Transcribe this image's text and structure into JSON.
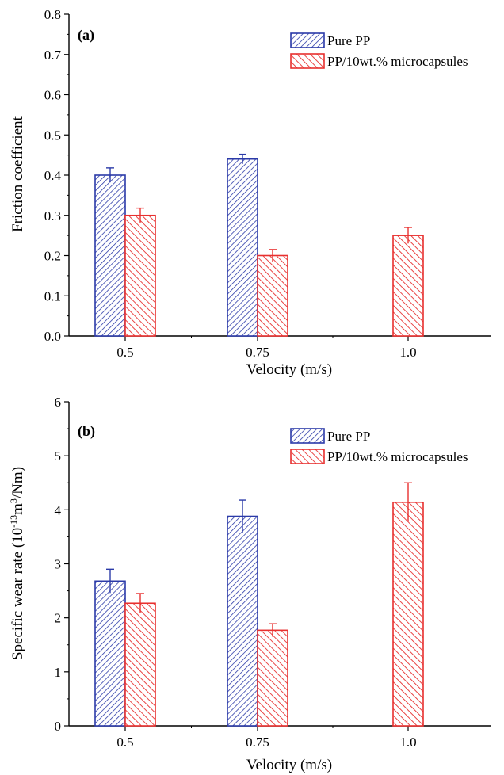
{
  "colors": {
    "pure_pp": "#2b3aa8",
    "pp_micro": "#e8302f",
    "axis": "#000000"
  },
  "chart_data": [
    {
      "type": "bar",
      "panel_label": "(a)",
      "categories": [
        "0.5",
        "0.75",
        "1.0"
      ],
      "xlabel": "Velocity (m/s)",
      "ylabel": "Friction coefficient",
      "ylabel_html": null,
      "ylim": [
        0,
        0.8
      ],
      "yticks": [
        "0.0",
        "0.1",
        "0.2",
        "0.3",
        "0.4",
        "0.5",
        "0.6",
        "0.7",
        "0.8"
      ],
      "ytick_values": [
        0,
        0.1,
        0.2,
        0.3,
        0.4,
        0.5,
        0.6,
        0.7,
        0.8
      ],
      "legend_position": "top-right",
      "grid": false,
      "series": [
        {
          "name": "Pure PP",
          "color_key": "pure_pp",
          "hatch": "dense",
          "values": [
            0.4,
            0.44,
            null
          ],
          "errors": [
            0.018,
            0.012,
            null
          ]
        },
        {
          "name": "PP/10wt.% microcapsules",
          "color_key": "pp_micro",
          "hatch": "sparse",
          "values": [
            0.3,
            0.2,
            0.25
          ],
          "errors": [
            0.018,
            0.015,
            0.02
          ]
        }
      ]
    },
    {
      "type": "bar",
      "panel_label": "(b)",
      "categories": [
        "0.5",
        "0.75",
        "1.0"
      ],
      "xlabel": "Velocity (m/s)",
      "ylabel": "Specific wear rate (10-13m3/Nm)",
      "ylabel_parts": {
        "prefix": "Specific wear rate (10",
        "exp1": "-13",
        "mid": "m",
        "exp2": "3",
        "suffix": "/Nm)"
      },
      "ylim": [
        0,
        6
      ],
      "yticks": [
        "0",
        "1",
        "2",
        "3",
        "4",
        "5",
        "6"
      ],
      "ytick_values": [
        0,
        1,
        2,
        3,
        4,
        5,
        6
      ],
      "legend_position": "top-right",
      "grid": false,
      "series": [
        {
          "name": "Pure PP",
          "color_key": "pure_pp",
          "hatch": "dense",
          "values": [
            2.68,
            3.88,
            null
          ],
          "errors": [
            0.22,
            0.3,
            null
          ]
        },
        {
          "name": "PP/10wt.% microcapsules",
          "color_key": "pp_micro",
          "hatch": "sparse",
          "values": [
            2.27,
            1.77,
            4.14
          ],
          "errors": [
            0.18,
            0.12,
            0.36
          ]
        }
      ]
    }
  ]
}
